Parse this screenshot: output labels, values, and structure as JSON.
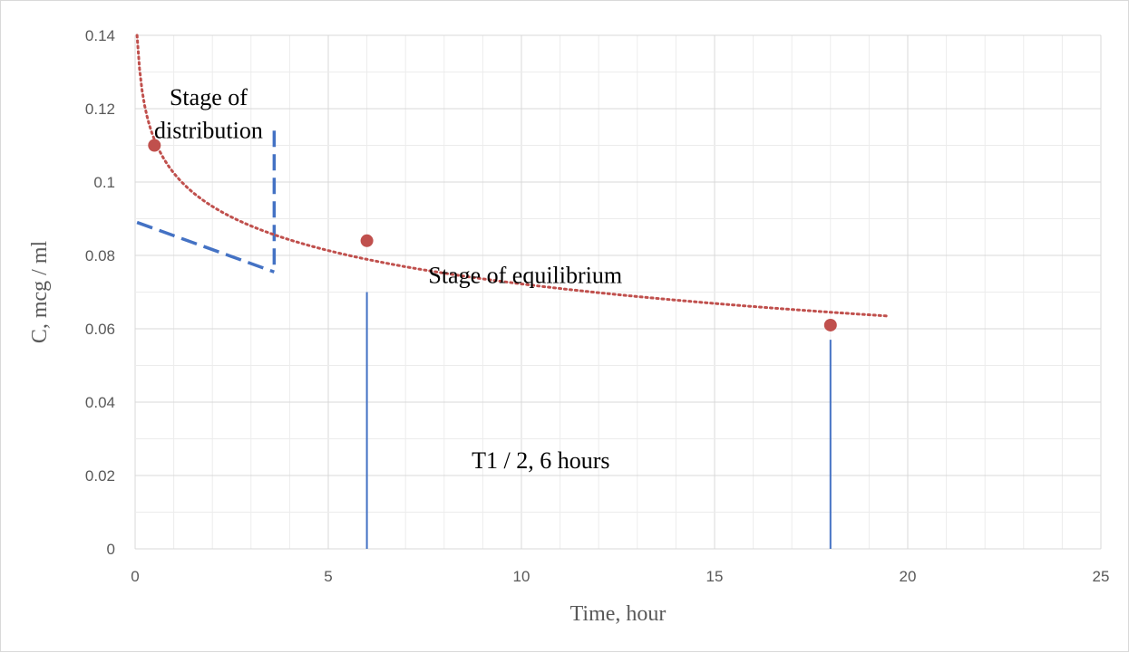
{
  "chart_data": {
    "type": "scatter",
    "xlabel": "Time, hour",
    "ylabel": "C, mcg / ml",
    "xlim": [
      0,
      25
    ],
    "ylim": [
      0,
      0.14
    ],
    "x_ticks": [
      "0",
      "5",
      "10",
      "15",
      "20",
      "25"
    ],
    "y_ticks": [
      "0",
      "0.02",
      "0.04",
      "0.06",
      "0.08",
      "0.1",
      "0.12",
      "0.14"
    ],
    "grid": "major and minor",
    "series": [
      {
        "x": [
          0.5,
          6,
          18
        ],
        "y": [
          0.11,
          0.084,
          0.061
        ],
        "color": "#c0504d"
      }
    ],
    "trendline": {
      "kind": "logarithmic",
      "style": "dotted",
      "color": "#c0504d",
      "x_range": [
        0.05,
        19.5
      ]
    },
    "annotations": [
      {
        "text": "Stage of",
        "x": 1.9,
        "y": 0.121
      },
      {
        "text": "distribution",
        "x": 1.9,
        "y": 0.112
      },
      {
        "text": "Stage of equilibrium",
        "x": 10.1,
        "y": 0.0725
      },
      {
        "text": "T1  / 2, 6 hours",
        "x": 10.5,
        "y": 0.022
      }
    ],
    "reference_lines": [
      {
        "from": [
          6,
          0.07
        ],
        "to": [
          6,
          0
        ],
        "style": "solid",
        "color": "#4472c4"
      },
      {
        "from": [
          18,
          0.057
        ],
        "to": [
          18,
          0
        ],
        "style": "solid",
        "color": "#4472c4"
      },
      {
        "from": [
          3.6,
          0.114
        ],
        "to": [
          3.6,
          0.077
        ],
        "style": "dashed",
        "color": "#4472c4"
      },
      {
        "from": [
          0.05,
          0.089
        ],
        "to": [
          3.6,
          0.0755
        ],
        "style": "dashed",
        "color": "#4472c4"
      }
    ]
  }
}
